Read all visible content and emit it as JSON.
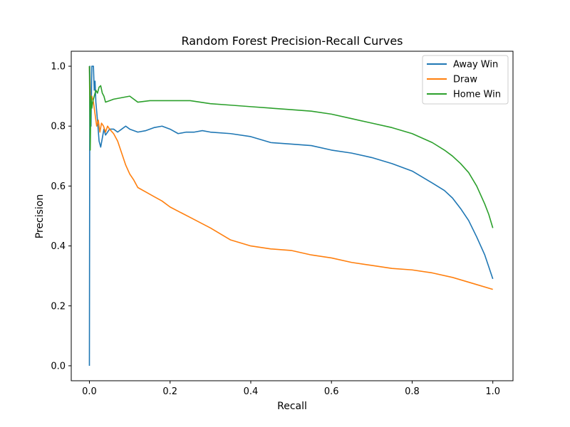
{
  "chart_data": {
    "type": "line",
    "title": "Random Forest Precision-Recall Curves",
    "xlabel": "Recall",
    "ylabel": "Precision",
    "xlim": [
      -0.045,
      1.05
    ],
    "ylim": [
      -0.05,
      1.05
    ],
    "xticks": [
      0.0,
      0.2,
      0.4,
      0.6,
      0.8,
      1.0
    ],
    "xtick_labels": [
      "0.0",
      "0.2",
      "0.4",
      "0.6",
      "0.8",
      "1.0"
    ],
    "yticks": [
      0.0,
      0.2,
      0.4,
      0.6,
      0.8,
      1.0
    ],
    "ytick_labels": [
      "0.0",
      "0.2",
      "0.4",
      "0.6",
      "0.8",
      "1.0"
    ],
    "grid": false,
    "legend": {
      "position": "top-right"
    },
    "series": [
      {
        "name": "Away Win",
        "color": "#1f77b4",
        "points": [
          [
            0.0,
            0.0
          ],
          [
            0.001,
            1.0
          ],
          [
            0.004,
            0.8
          ],
          [
            0.006,
            1.0
          ],
          [
            0.01,
            1.0
          ],
          [
            0.012,
            0.92
          ],
          [
            0.014,
            0.95
          ],
          [
            0.016,
            0.88
          ],
          [
            0.02,
            0.82
          ],
          [
            0.024,
            0.75
          ],
          [
            0.028,
            0.73
          ],
          [
            0.032,
            0.76
          ],
          [
            0.036,
            0.79
          ],
          [
            0.04,
            0.77
          ],
          [
            0.045,
            0.78
          ],
          [
            0.05,
            0.79
          ],
          [
            0.06,
            0.79
          ],
          [
            0.07,
            0.78
          ],
          [
            0.08,
            0.79
          ],
          [
            0.09,
            0.8
          ],
          [
            0.1,
            0.79
          ],
          [
            0.12,
            0.78
          ],
          [
            0.14,
            0.785
          ],
          [
            0.16,
            0.795
          ],
          [
            0.18,
            0.8
          ],
          [
            0.2,
            0.79
          ],
          [
            0.22,
            0.775
          ],
          [
            0.24,
            0.78
          ],
          [
            0.26,
            0.78
          ],
          [
            0.28,
            0.785
          ],
          [
            0.3,
            0.78
          ],
          [
            0.35,
            0.775
          ],
          [
            0.4,
            0.765
          ],
          [
            0.45,
            0.745
          ],
          [
            0.5,
            0.74
          ],
          [
            0.55,
            0.735
          ],
          [
            0.6,
            0.72
          ],
          [
            0.65,
            0.71
          ],
          [
            0.7,
            0.695
          ],
          [
            0.75,
            0.675
          ],
          [
            0.8,
            0.65
          ],
          [
            0.85,
            0.61
          ],
          [
            0.88,
            0.585
          ],
          [
            0.9,
            0.56
          ],
          [
            0.92,
            0.525
          ],
          [
            0.94,
            0.485
          ],
          [
            0.96,
            0.43
          ],
          [
            0.98,
            0.37
          ],
          [
            0.99,
            0.33
          ],
          [
            1.0,
            0.29
          ]
        ]
      },
      {
        "name": "Draw",
        "color": "#ff7f0e",
        "points": [
          [
            0.0,
            1.0
          ],
          [
            0.003,
            0.85
          ],
          [
            0.006,
            0.9
          ],
          [
            0.01,
            0.88
          ],
          [
            0.014,
            0.84
          ],
          [
            0.018,
            0.8
          ],
          [
            0.022,
            0.82
          ],
          [
            0.026,
            0.78
          ],
          [
            0.03,
            0.81
          ],
          [
            0.035,
            0.8
          ],
          [
            0.04,
            0.78
          ],
          [
            0.045,
            0.8
          ],
          [
            0.05,
            0.79
          ],
          [
            0.06,
            0.775
          ],
          [
            0.07,
            0.75
          ],
          [
            0.08,
            0.71
          ],
          [
            0.09,
            0.67
          ],
          [
            0.1,
            0.64
          ],
          [
            0.11,
            0.62
          ],
          [
            0.12,
            0.595
          ],
          [
            0.14,
            0.58
          ],
          [
            0.16,
            0.565
          ],
          [
            0.18,
            0.55
          ],
          [
            0.2,
            0.53
          ],
          [
            0.25,
            0.495
          ],
          [
            0.3,
            0.46
          ],
          [
            0.35,
            0.42
          ],
          [
            0.4,
            0.4
          ],
          [
            0.45,
            0.39
          ],
          [
            0.5,
            0.385
          ],
          [
            0.55,
            0.37
          ],
          [
            0.6,
            0.36
          ],
          [
            0.65,
            0.345
          ],
          [
            0.7,
            0.335
          ],
          [
            0.75,
            0.325
          ],
          [
            0.8,
            0.32
          ],
          [
            0.85,
            0.31
          ],
          [
            0.9,
            0.295
          ],
          [
            0.95,
            0.275
          ],
          [
            1.0,
            0.255
          ]
        ]
      },
      {
        "name": "Home Win",
        "color": "#2ca02c",
        "points": [
          [
            0.0,
            1.0
          ],
          [
            0.002,
            0.72
          ],
          [
            0.004,
            0.9
          ],
          [
            0.006,
            0.86
          ],
          [
            0.008,
            0.88
          ],
          [
            0.012,
            0.9
          ],
          [
            0.016,
            0.92
          ],
          [
            0.02,
            0.91
          ],
          [
            0.024,
            0.93
          ],
          [
            0.028,
            0.935
          ],
          [
            0.032,
            0.91
          ],
          [
            0.036,
            0.9
          ],
          [
            0.04,
            0.88
          ],
          [
            0.05,
            0.885
          ],
          [
            0.06,
            0.89
          ],
          [
            0.08,
            0.895
          ],
          [
            0.1,
            0.9
          ],
          [
            0.12,
            0.88
          ],
          [
            0.15,
            0.885
          ],
          [
            0.2,
            0.885
          ],
          [
            0.25,
            0.885
          ],
          [
            0.3,
            0.875
          ],
          [
            0.35,
            0.87
          ],
          [
            0.4,
            0.865
          ],
          [
            0.45,
            0.86
          ],
          [
            0.5,
            0.855
          ],
          [
            0.55,
            0.85
          ],
          [
            0.6,
            0.84
          ],
          [
            0.65,
            0.825
          ],
          [
            0.7,
            0.81
          ],
          [
            0.75,
            0.795
          ],
          [
            0.8,
            0.775
          ],
          [
            0.85,
            0.745
          ],
          [
            0.88,
            0.72
          ],
          [
            0.9,
            0.7
          ],
          [
            0.92,
            0.675
          ],
          [
            0.94,
            0.645
          ],
          [
            0.96,
            0.6
          ],
          [
            0.98,
            0.54
          ],
          [
            0.99,
            0.505
          ],
          [
            1.0,
            0.46
          ]
        ]
      }
    ]
  }
}
